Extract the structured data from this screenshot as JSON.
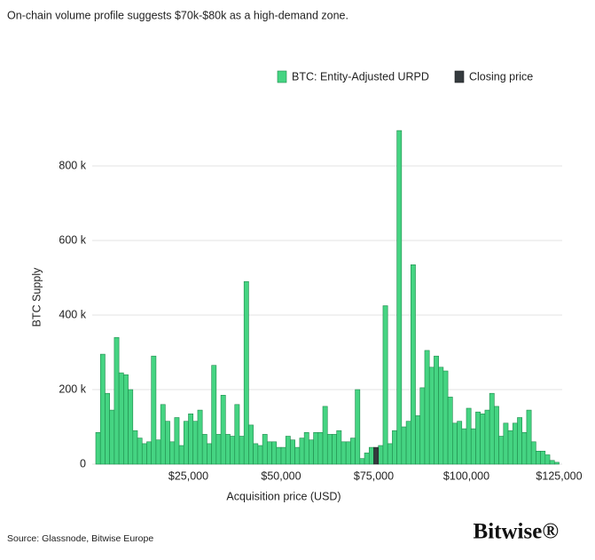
{
  "chart_data": {
    "type": "histogram",
    "title": "On-chain volume profile suggests $70k-$80k as a high-demand zone.",
    "xlabel": "Acquisition price (USD)",
    "ylabel": "BTC Supply",
    "source": "Source: Glassnode, Bitwise Europe",
    "logo": "Bitwise®",
    "xlim": [
      0,
      125000
    ],
    "xticks": [
      {
        "value": 25000,
        "label": "$25,000"
      },
      {
        "value": 50000,
        "label": "$50,000"
      },
      {
        "value": 75000,
        "label": "$75,000"
      },
      {
        "value": 100000,
        "label": "$100,000"
      },
      {
        "value": 125000,
        "label": "$125,000"
      }
    ],
    "ylim": [
      0,
      900000
    ],
    "yticks": [
      0,
      {
        "value": 200000,
        "label": "200 k"
      },
      {
        "value": 400000,
        "label": "400 k"
      },
      {
        "value": 600000,
        "label": "600 k"
      },
      {
        "value": 800000,
        "label": "800 k"
      }
    ],
    "grid": true,
    "legend": "top-right",
    "bins": [
      0,
      1250,
      2500,
      3750,
      5000,
      6250,
      7500,
      8750,
      10000,
      11250,
      12500,
      13750,
      15000,
      16250,
      17500,
      18750,
      20000,
      21250,
      22500,
      23750,
      25000,
      26250,
      27500,
      28750,
      30000,
      31250,
      32500,
      33750,
      35000,
      36250,
      37500,
      38750,
      40000,
      41250,
      42500,
      43750,
      45000,
      46250,
      47500,
      48750,
      50000,
      51250,
      52500,
      53750,
      55000,
      56250,
      57500,
      58750,
      60000,
      61250,
      62500,
      63750,
      65000,
      66250,
      67500,
      68750,
      70000,
      71250,
      72500,
      73750,
      75000,
      76250,
      77500,
      78750,
      80000,
      81250,
      82500,
      83750,
      85000,
      86250,
      87500,
      88750,
      90000,
      91250,
      92500,
      93750,
      95000,
      96250,
      97500,
      98750,
      100000,
      101250,
      102500,
      103750,
      105000,
      106250,
      107500,
      108750,
      110000,
      111250,
      112500,
      113750,
      115000,
      116250,
      117500,
      118750,
      120000,
      121250,
      122500,
      123750,
      125000
    ],
    "series": [
      {
        "name": "BTC: Entity-Adjusted URPD",
        "color": "#45d482",
        "edge": "#1f8a4c",
        "values": [
          85000,
          295000,
          190000,
          145000,
          340000,
          245000,
          240000,
          200000,
          90000,
          70000,
          55000,
          60000,
          290000,
          65000,
          160000,
          115000,
          60000,
          125000,
          50000,
          115000,
          135000,
          115000,
          145000,
          80000,
          55000,
          265000,
          80000,
          185000,
          80000,
          75000,
          160000,
          75000,
          490000,
          105000,
          55000,
          50000,
          80000,
          60000,
          60000,
          45000,
          45000,
          75000,
          65000,
          45000,
          70000,
          85000,
          65000,
          85000,
          85000,
          155000,
          80000,
          80000,
          90000,
          60000,
          60000,
          70000,
          200000,
          15000,
          30000,
          45000,
          null,
          50000,
          425000,
          55000,
          90000,
          895000,
          100000,
          115000,
          535000,
          130000,
          205000,
          305000,
          260000,
          290000,
          260000,
          250000,
          180000,
          110000,
          115000,
          95000,
          150000,
          95000,
          140000,
          135000,
          145000,
          190000,
          155000,
          75000,
          110000,
          90000,
          110000,
          125000,
          85000,
          145000,
          60000,
          35000,
          35000,
          25000,
          10000,
          5000
        ]
      },
      {
        "name": "Closing price",
        "color": "#353b3e",
        "edge": "#1e2224",
        "bins": [
          75000,
          76250
        ],
        "values": [
          45000
        ]
      }
    ]
  }
}
